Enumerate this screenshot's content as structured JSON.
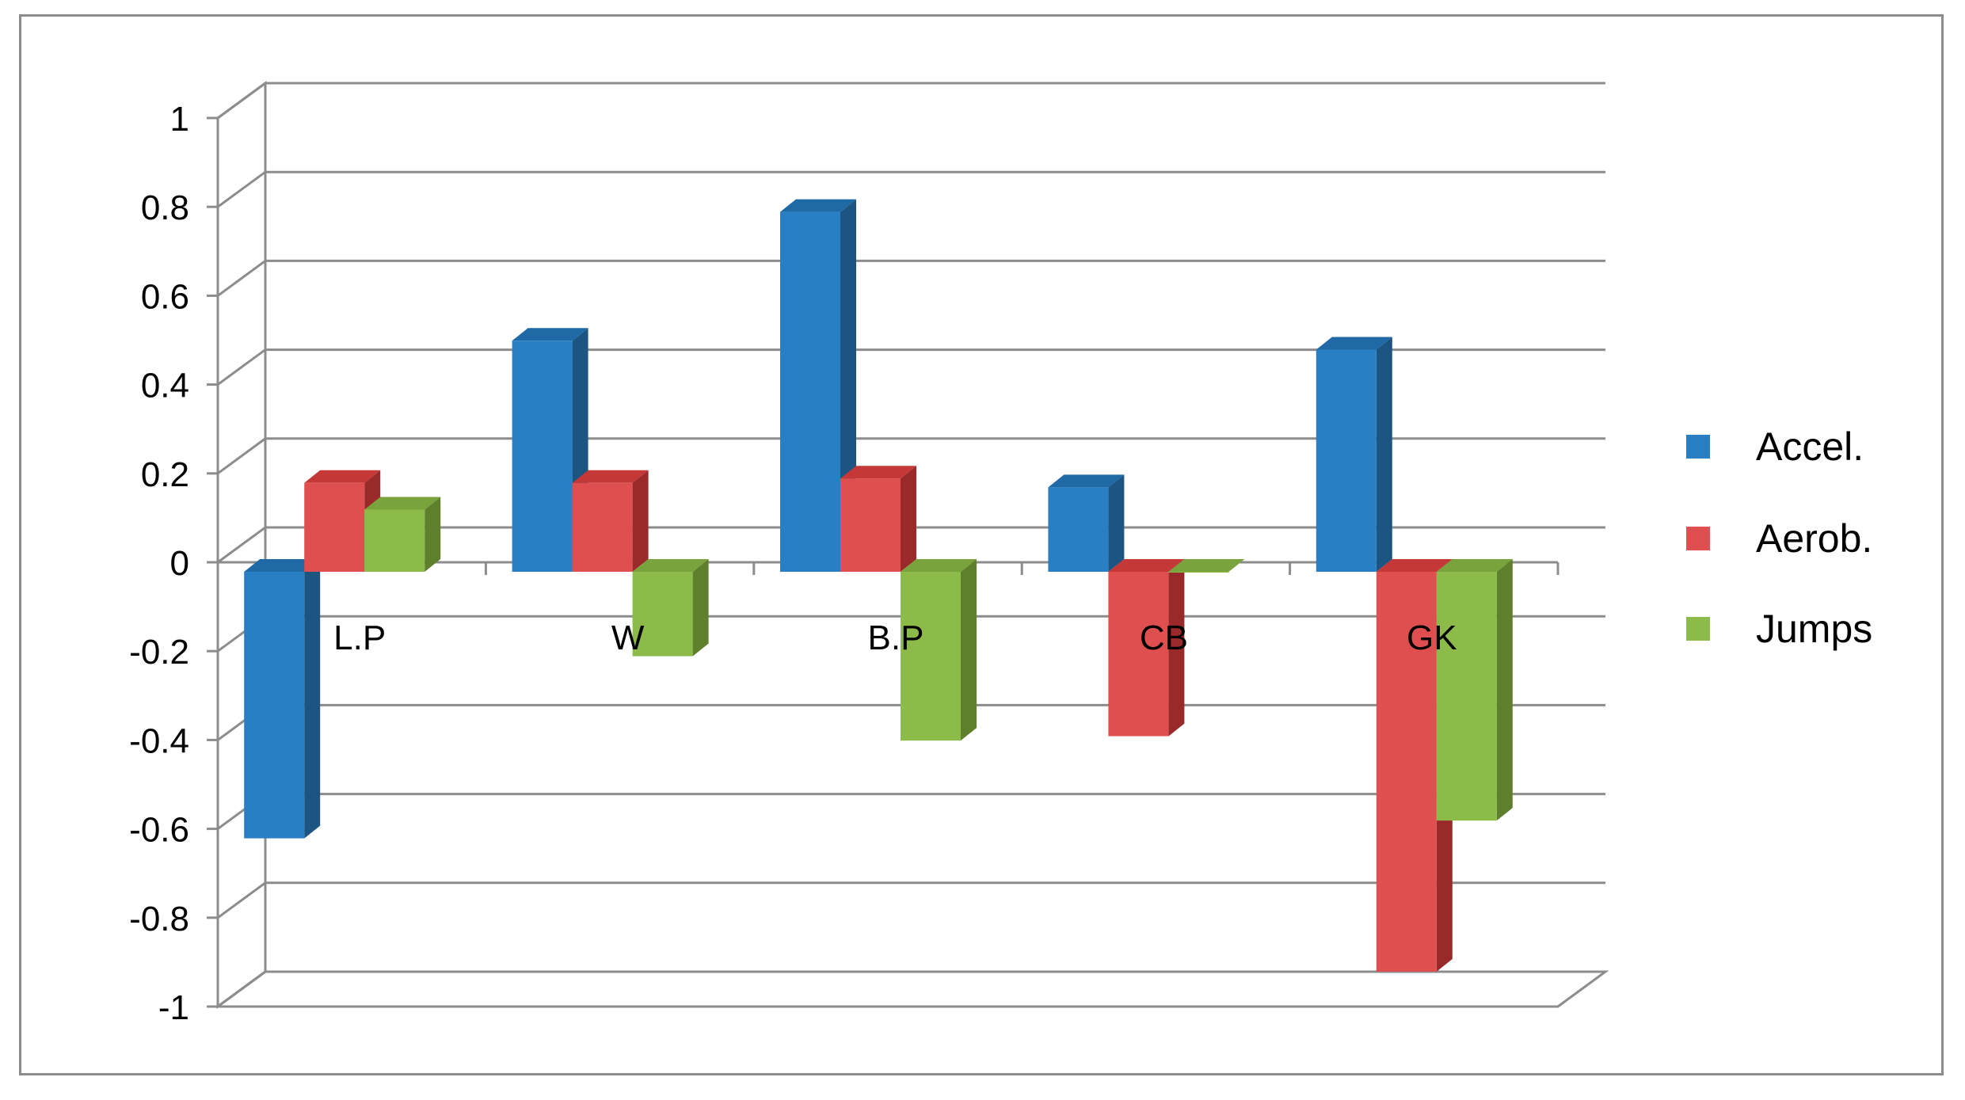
{
  "chart_data": {
    "type": "bar",
    "style": "3d-clustered-column",
    "categories": [
      "L.P",
      "W",
      "B.P",
      "CB",
      "GK"
    ],
    "series": [
      {
        "name": "Accel.",
        "color": "#2A7FC4",
        "side_color": "#1C5582",
        "top_color": "#1F6AA6",
        "values": [
          -0.6,
          0.52,
          0.81,
          0.19,
          0.5
        ]
      },
      {
        "name": "Aerob.",
        "color": "#E04F4F",
        "side_color": "#9A2A2A",
        "top_color": "#C43838",
        "values": [
          0.2,
          0.2,
          0.21,
          -0.37,
          -0.9
        ]
      },
      {
        "name": "Jumps",
        "color": "#8DBB4A",
        "side_color": "#5E7F2C",
        "top_color": "#79A33C",
        "values": [
          0.14,
          -0.19,
          -0.38,
          0.0,
          -0.56
        ]
      }
    ],
    "yticks": [
      "1",
      "0.8",
      "0.6",
      "0.4",
      "0.2",
      "0",
      "-0.2",
      "-0.4",
      "-0.6",
      "-0.8",
      "-1"
    ],
    "ylim": [
      -1,
      1
    ],
    "grid": true,
    "legend_position": "right",
    "xlabel": "",
    "ylabel": "",
    "title": ""
  }
}
